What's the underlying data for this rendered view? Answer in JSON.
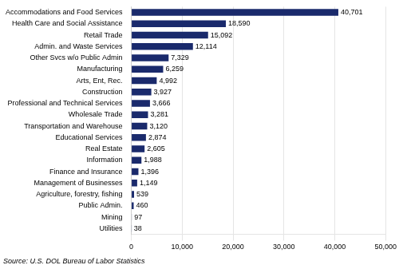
{
  "chart_data": {
    "type": "bar",
    "orientation": "horizontal",
    "categories": [
      "Utilities",
      "Mining",
      "Public Admin.",
      "Agriculture, forestry, fishing",
      "Management of Businesses",
      "Finance and Insurance",
      "Information",
      "Real Estate",
      "Educational Services",
      "Transportation and Warehouse",
      "Wholesale Trade",
      "Professional and Technical Services",
      "Construction",
      "Arts, Ent, Rec.",
      "Manufacturing",
      "Other Svcs w/o Public Admin",
      "Admin. and Waste Services",
      "Retail Trade",
      "Health Care and Social Assistance",
      "Accommodations and Food Services"
    ],
    "values": [
      38,
      97,
      460,
      539,
      1149,
      1396,
      1988,
      2605,
      2874,
      3120,
      3281,
      3666,
      3927,
      4992,
      6259,
      7329,
      12114,
      15092,
      18590,
      40701
    ],
    "value_labels": [
      "38",
      "97",
      "460",
      "539",
      "1,149",
      "1,396",
      "1,988",
      "2,605",
      "2,874",
      "3,120",
      "3,281",
      "3,666",
      "3,927",
      "4,992",
      "6,259",
      "7,329",
      "12,114",
      "15,092",
      "18,590",
      "40,701"
    ],
    "data_labels": true,
    "color": "#1a2a6c",
    "xlim": [
      0,
      50000
    ],
    "xticks": [
      0,
      {
        "value": 10000,
        "label": "10,000"
      },
      {
        "value": 20000,
        "label": "20,000"
      },
      {
        "value": 30000,
        "label": "30,000"
      },
      {
        "value": 40000,
        "label": "40,000"
      },
      {
        "value": 50000,
        "label": "50,000"
      }
    ],
    "grid": true,
    "annotation": "Source: U.S. DOL Bureau of Labor Statistics"
  }
}
